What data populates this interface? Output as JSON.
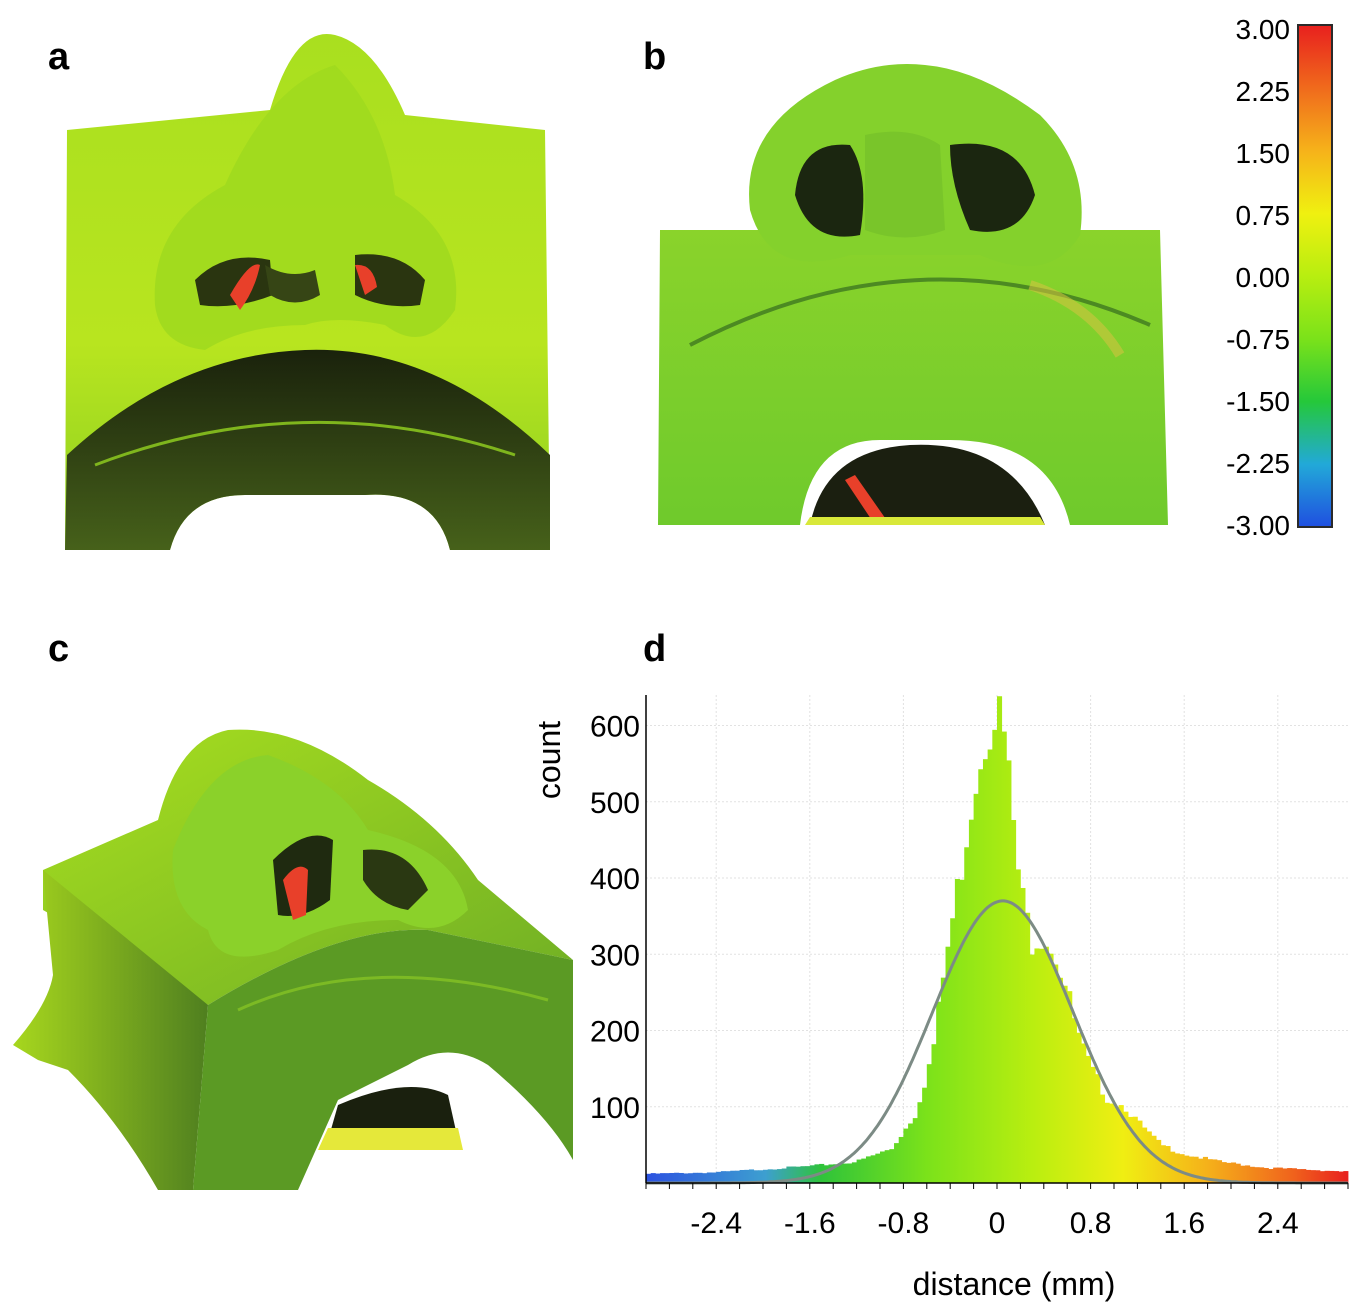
{
  "panels": {
    "a": "a",
    "b": "b",
    "c": "c",
    "d": "d"
  },
  "colorbar": {
    "labels": [
      "3.00",
      "2.25",
      "1.50",
      "0.75",
      "0.00",
      "-0.75",
      "-1.50",
      "-2.25",
      "-3.00"
    ],
    "colors": [
      "#1f4fe0",
      "#22a9d8",
      "#25c83a",
      "#7be21a",
      "#b8ee10",
      "#f0f010",
      "#f6b21a",
      "#f06a1c",
      "#e8201e"
    ]
  },
  "model_colors": {
    "surface_light": "#b8e51f",
    "surface_green": "#7ad42a",
    "shadow": "#1e2a10",
    "hot": "#e8402a",
    "warm": "#f2c23a"
  },
  "chart_data": {
    "type": "bar",
    "title": "",
    "xlabel": "distance (mm)",
    "ylabel": "count",
    "xlim": [
      -3.0,
      3.0
    ],
    "ylim": [
      0,
      640
    ],
    "xticks": [
      "-2.4",
      "-1.6",
      "-0.8",
      "0",
      "0.8",
      "1.6",
      "2.4"
    ],
    "xtick_values": [
      -2.4,
      -1.6,
      -0.8,
      0,
      0.8,
      1.6,
      2.4
    ],
    "yticks": [
      "100",
      "200",
      "300",
      "400",
      "500",
      "600"
    ],
    "ytick_values": [
      100,
      200,
      300,
      400,
      500,
      600
    ],
    "grid": true,
    "fit_curve": {
      "type": "gaussian",
      "mean": 0.05,
      "sd": 0.6,
      "peak": 370,
      "color": "#7c8b85"
    },
    "histogram": {
      "bin_width": 0.04,
      "x_start": -3.0,
      "anchors": [
        [
          -3.0,
          12
        ],
        [
          -2.4,
          14
        ],
        [
          -2.0,
          18
        ],
        [
          -1.6,
          22
        ],
        [
          -1.2,
          28
        ],
        [
          -0.9,
          45
        ],
        [
          -0.7,
          90
        ],
        [
          -0.55,
          170
        ],
        [
          -0.45,
          280
        ],
        [
          -0.3,
          420
        ],
        [
          -0.2,
          520
        ],
        [
          -0.1,
          590
        ],
        [
          -0.02,
          630
        ],
        [
          0.05,
          600
        ],
        [
          0.12,
          500
        ],
        [
          0.2,
          380
        ],
        [
          0.3,
          320
        ],
        [
          0.4,
          330
        ],
        [
          0.5,
          300
        ],
        [
          0.6,
          250
        ],
        [
          0.7,
          190
        ],
        [
          0.8,
          150
        ],
        [
          0.95,
          110
        ],
        [
          1.1,
          100
        ],
        [
          1.2,
          80
        ],
        [
          1.4,
          50
        ],
        [
          1.6,
          38
        ],
        [
          1.9,
          28
        ],
        [
          2.3,
          20
        ],
        [
          3.0,
          15
        ]
      ]
    }
  }
}
